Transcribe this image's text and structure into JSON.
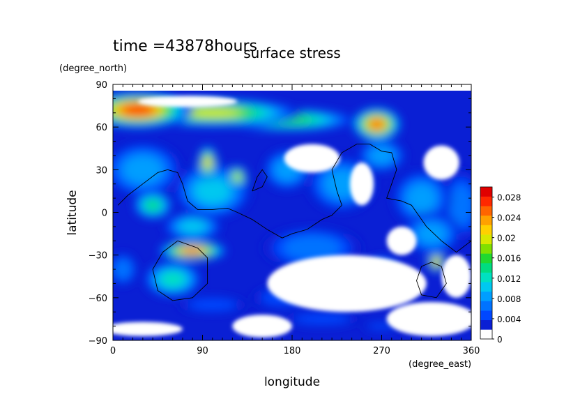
{
  "time_label": "time =43878hours",
  "chart_data": {
    "type": "heatmap",
    "title": "surface stress",
    "xlabel": "longitude",
    "ylabel": "latitude",
    "x_units": "(degree_east)",
    "y_units": "(degree_north)",
    "xlim": [
      0,
      360
    ],
    "ylim": [
      -90,
      90
    ],
    "x_ticks": [
      "0",
      "90",
      "180",
      "270",
      "360"
    ],
    "y_ticks": [
      "90",
      "60",
      "30",
      "0",
      "−30",
      "−60",
      "−90"
    ],
    "colorbar": {
      "range": [
        0,
        0.03
      ],
      "tick_labels": [
        "0",
        "0.004",
        "0.008",
        "0.012",
        "0.016",
        "0.02",
        "0.024",
        "0.028"
      ],
      "colors": [
        "#ffffff",
        "#0a1fd4",
        "#0047ff",
        "#0073ff",
        "#009eff",
        "#00c8f0",
        "#00e0c0",
        "#00dc80",
        "#20d830",
        "#80e000",
        "#d8e800",
        "#ffd000",
        "#ffa000",
        "#ff6400",
        "#ff2800",
        "#e00000"
      ]
    },
    "features": [
      {
        "lon": 25,
        "lat": 72,
        "rx": 55,
        "ry": 13,
        "value": 0.028
      },
      {
        "lon": 100,
        "lat": 70,
        "rx": 90,
        "ry": 10,
        "value": 0.02
      },
      {
        "lon": 175,
        "lat": 65,
        "rx": 70,
        "ry": 8,
        "value": 0.015
      },
      {
        "lon": 265,
        "lat": 62,
        "rx": 25,
        "ry": 12,
        "value": 0.026
      },
      {
        "lon": 80,
        "lat": -27,
        "rx": 35,
        "ry": 7,
        "value": 0.026
      },
      {
        "lon": 60,
        "lat": -47,
        "rx": 30,
        "ry": 13,
        "value": 0.012
      },
      {
        "lon": 95,
        "lat": 35,
        "rx": 10,
        "ry": 12,
        "value": 0.022
      },
      {
        "lon": 125,
        "lat": 25,
        "rx": 10,
        "ry": 8,
        "value": 0.02
      },
      {
        "lon": 325,
        "lat": -35,
        "rx": 10,
        "ry": 7,
        "value": 0.024
      },
      {
        "lon": 40,
        "lat": 5,
        "rx": 20,
        "ry": 10,
        "value": 0.014
      },
      {
        "lon": 100,
        "lat": 15,
        "rx": 40,
        "ry": 20,
        "value": 0.01
      },
      {
        "lon": 30,
        "lat": 30,
        "rx": 40,
        "ry": 20,
        "value": 0.008
      },
      {
        "lon": 175,
        "lat": 30,
        "rx": 25,
        "ry": 15,
        "value": 0.008
      },
      {
        "lon": 230,
        "lat": 20,
        "rx": 35,
        "ry": 20,
        "value": 0.007
      },
      {
        "lon": 310,
        "lat": 10,
        "rx": 30,
        "ry": 20,
        "value": 0.008
      },
      {
        "lon": 200,
        "lat": -25,
        "rx": 50,
        "ry": 15,
        "value": 0.006
      },
      {
        "lon": 320,
        "lat": -15,
        "rx": 30,
        "ry": 15,
        "value": 0.008
      },
      {
        "lon": 350,
        "lat": 5,
        "rx": 20,
        "ry": 25,
        "value": 0.006
      },
      {
        "lon": 10,
        "lat": -40,
        "rx": 15,
        "ry": 12,
        "value": 0.006
      },
      {
        "lon": 270,
        "lat": -40,
        "rx": 20,
        "ry": 10,
        "value": 0.005
      },
      {
        "lon": 170,
        "lat": -60,
        "rx": 30,
        "ry": 8,
        "value": 0.004
      },
      {
        "lon": 100,
        "lat": -65,
        "rx": 35,
        "ry": 6,
        "value": 0.003
      },
      {
        "lon": 210,
        "lat": -75,
        "rx": 40,
        "ry": 5,
        "value": 0.003
      },
      {
        "lon": 270,
        "lat": -80,
        "rx": 20,
        "ry": 3,
        "value": 0.003
      },
      {
        "lon": 80,
        "lat": -10,
        "rx": 30,
        "ry": 10,
        "value": 0.009
      },
      {
        "lon": 270,
        "lat": 40,
        "rx": 25,
        "ry": 12,
        "value": 0.007
      }
    ],
    "white_regions": [
      {
        "lon": 75,
        "lat": 78,
        "rx": 50,
        "ry": 4
      },
      {
        "lon": 200,
        "lat": 38,
        "rx": 28,
        "ry": 10
      },
      {
        "lon": 250,
        "lat": 20,
        "rx": 12,
        "ry": 15
      },
      {
        "lon": 330,
        "lat": 35,
        "rx": 18,
        "ry": 12
      },
      {
        "lon": 235,
        "lat": -50,
        "rx": 80,
        "ry": 20
      },
      {
        "lon": 345,
        "lat": -45,
        "rx": 15,
        "ry": 15
      },
      {
        "lon": 320,
        "lat": -75,
        "rx": 45,
        "ry": 12
      },
      {
        "lon": 150,
        "lat": -80,
        "rx": 30,
        "ry": 8
      },
      {
        "lon": 30,
        "lat": -82,
        "rx": 40,
        "ry": 5
      },
      {
        "lon": 290,
        "lat": -20,
        "rx": 15,
        "ry": 10
      }
    ],
    "coastlines": [
      [
        [
          5,
          5
        ],
        [
          15,
          12
        ],
        [
          30,
          20
        ],
        [
          45,
          28
        ],
        [
          55,
          30
        ],
        [
          65,
          28
        ],
        [
          70,
          20
        ],
        [
          75,
          8
        ],
        [
          85,
          2
        ],
        [
          100,
          2
        ],
        [
          115,
          3
        ],
        [
          125,
          0
        ],
        [
          140,
          -5
        ],
        [
          155,
          -12
        ],
        [
          170,
          -18
        ],
        [
          180,
          -15
        ],
        [
          195,
          -12
        ],
        [
          210,
          -5
        ],
        [
          220,
          -2
        ],
        [
          230,
          5
        ]
      ],
      [
        [
          230,
          5
        ],
        [
          225,
          15
        ],
        [
          220,
          30
        ],
        [
          230,
          42
        ],
        [
          245,
          48
        ],
        [
          258,
          48
        ],
        [
          270,
          43
        ],
        [
          280,
          42
        ],
        [
          285,
          30
        ],
        [
          280,
          20
        ],
        [
          275,
          10
        ],
        [
          290,
          8
        ],
        [
          300,
          5
        ],
        [
          315,
          -10
        ],
        [
          330,
          -20
        ],
        [
          345,
          -28
        ],
        [
          360,
          -20
        ]
      ],
      [
        [
          140,
          15
        ],
        [
          145,
          25
        ],
        [
          150,
          30
        ],
        [
          155,
          25
        ],
        [
          150,
          18
        ],
        [
          140,
          15
        ]
      ],
      [
        [
          65,
          -20
        ],
        [
          85,
          -25
        ],
        [
          95,
          -32
        ],
        [
          95,
          -50
        ],
        [
          80,
          -60
        ],
        [
          60,
          -62
        ],
        [
          45,
          -55
        ],
        [
          40,
          -40
        ],
        [
          50,
          -28
        ],
        [
          65,
          -20
        ]
      ],
      [
        [
          320,
          -35
        ],
        [
          330,
          -38
        ],
        [
          335,
          -50
        ],
        [
          325,
          -60
        ],
        [
          310,
          -58
        ],
        [
          305,
          -48
        ],
        [
          310,
          -38
        ],
        [
          320,
          -35
        ]
      ]
    ]
  }
}
